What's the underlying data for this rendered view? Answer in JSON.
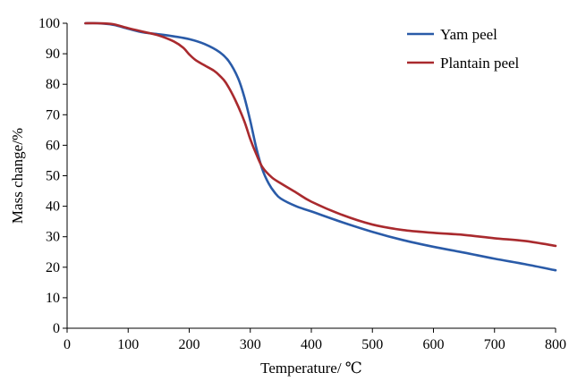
{
  "chart_data": {
    "type": "line",
    "xlabel": "Temperature/ ℃",
    "ylabel": "Mass change/%",
    "xlim": [
      0,
      800
    ],
    "ylim": [
      0,
      100
    ],
    "xticks": [
      0,
      100,
      200,
      300,
      400,
      500,
      600,
      700,
      800
    ],
    "yticks": [
      0,
      10,
      20,
      30,
      40,
      50,
      60,
      70,
      80,
      90,
      100
    ],
    "grid": false,
    "legend": "top-right",
    "series": [
      {
        "name": "Yam peel",
        "color": "#2a5ba8",
        "x": [
          30,
          50,
          75,
          100,
          125,
          150,
          175,
          200,
          225,
          250,
          265,
          280,
          290,
          300,
          310,
          320,
          330,
          340,
          350,
          375,
          400,
          450,
          500,
          550,
          600,
          650,
          700,
          750,
          800
        ],
        "y": [
          100,
          100,
          99.5,
          98.2,
          97,
          96.4,
          95.7,
          94.8,
          93.2,
          90.5,
          87.5,
          82,
          76,
          68,
          59,
          52,
          47.5,
          44.5,
          42.5,
          40,
          38.3,
          34.8,
          31.6,
          28.9,
          26.7,
          24.8,
          22.8,
          21,
          19
        ]
      },
      {
        "name": "Plantain peel",
        "color": "#a92a2e",
        "x": [
          30,
          50,
          75,
          100,
          125,
          150,
          175,
          190,
          200,
          210,
          225,
          240,
          250,
          260,
          275,
          290,
          300,
          310,
          320,
          335,
          350,
          375,
          400,
          450,
          500,
          550,
          600,
          650,
          700,
          750,
          800
        ],
        "y": [
          100,
          100,
          99.7,
          98.4,
          97.2,
          96,
          94,
          92,
          89.8,
          88,
          86.2,
          84.5,
          82.8,
          80.5,
          75,
          68,
          62,
          57,
          52.8,
          49.5,
          47.5,
          44.5,
          41.5,
          37.2,
          34,
          32.2,
          31.3,
          30.6,
          29.5,
          28.6,
          27
        ]
      }
    ]
  }
}
